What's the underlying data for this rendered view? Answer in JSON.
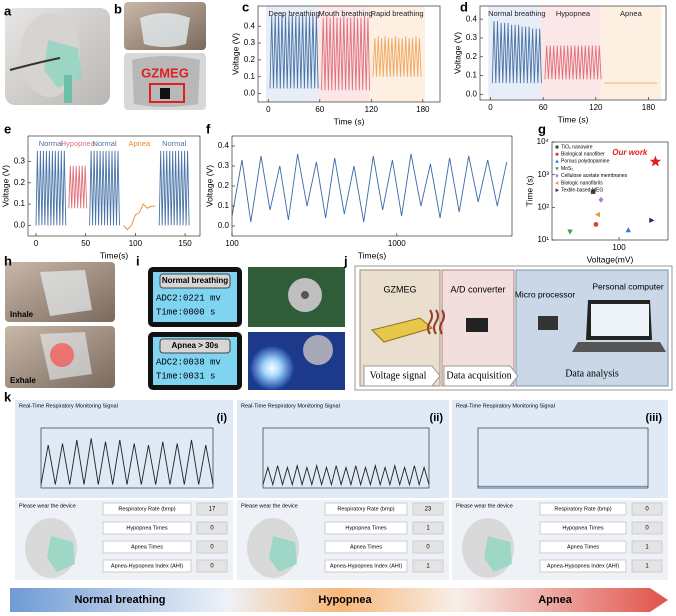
{
  "panel_labels": [
    "a",
    "b",
    "c",
    "d",
    "e",
    "f",
    "g",
    "h",
    "i",
    "j",
    "k"
  ],
  "b": {
    "brand": "GZMEG"
  },
  "h": {
    "inhale": "Inhale",
    "exhale": "Exhale"
  },
  "i": {
    "screens": [
      {
        "title": "Normal breathing",
        "lines": [
          "ADC2:0221 mv",
          "Time:0000 s"
        ]
      },
      {
        "title": "Apnea > 30s",
        "lines": [
          "ADC2:0038 mv",
          "Time:0031 s"
        ]
      }
    ]
  },
  "j": {
    "gzmeg": "GZMEG",
    "converter": "A/D converter",
    "processor": "Micro processor",
    "computer": "Personal computer",
    "stages": [
      "Voltage signal",
      "Data acquisition",
      "Data analysis"
    ]
  },
  "k": {
    "panels": [
      {
        "title": "Real-Time Respiratory Monitoring Signal",
        "tag": "(i)",
        "prompt": "Please wear the device",
        "rows": [
          {
            "label": "Respiratory Rate (bmp)",
            "value": 17
          },
          {
            "label": "Hypopnea Times",
            "value": 0
          },
          {
            "label": "Apnea Times",
            "value": 0
          },
          {
            "label": "Apnea-Hypopnea Index (AHI)",
            "value": 0
          }
        ]
      },
      {
        "title": "Real-Time Respiratory Monitoring Signal",
        "tag": "(ii)",
        "prompt": "Please wear the device",
        "rows": [
          {
            "label": "Respiratory Rate (bmp)",
            "value": 23
          },
          {
            "label": "Hypopnea Times",
            "value": 1
          },
          {
            "label": "Apnea Times",
            "value": 0
          },
          {
            "label": "Apnea-Hypopnea Index (AHI)",
            "value": 1
          }
        ]
      },
      {
        "title": "Real-Time Respiratory Monitoring Signal",
        "tag": "(iii)",
        "prompt": "Please wear the device",
        "rows": [
          {
            "label": "Respiratory Rate (bmp)",
            "value": 0
          },
          {
            "label": "Hypopnea Times",
            "value": 0
          },
          {
            "label": "Apnea Times",
            "value": 1
          },
          {
            "label": "Apnea-Hypopnea Index (AHI)",
            "value": 1
          }
        ]
      }
    ],
    "stages": [
      "Normal breathing",
      "Hypopnea",
      "Apnea"
    ]
  },
  "chart_data": [
    {
      "type": "line",
      "x_label": "Time (s)",
      "y_label": "Voltage (V)",
      "xlim": [
        -12,
        200
      ],
      "ylim": [
        -0.05,
        0.52
      ],
      "xticks": [
        0,
        60,
        120,
        180
      ],
      "yticks": [
        {
          "value": 0,
          "label": "0.0"
        },
        0.1,
        0.2,
        0.3,
        0.4
      ],
      "series": [
        {
          "name": "Deep breathing",
          "color": "#4a74a8",
          "background": "#e8eef7",
          "x": [
            2,
            4,
            6,
            8,
            10,
            12,
            14,
            16,
            18,
            20,
            22,
            24,
            26,
            28,
            30,
            32,
            34,
            36,
            38,
            40,
            42,
            44,
            46,
            48,
            50,
            52,
            54,
            56,
            58
          ],
          "values": [
            0.03,
            0.46,
            0.03,
            0.47,
            0.03,
            0.46,
            0.03,
            0.47,
            0.03,
            0.46,
            0.03,
            0.46,
            0.03,
            0.47,
            0.03,
            0.46,
            0.03,
            0.46,
            0.03,
            0.47,
            0.03,
            0.46,
            0.03,
            0.46,
            0.03,
            0.47,
            0.03,
            0.46,
            0.03
          ]
        },
        {
          "name": "Mouth breathing",
          "color": "#e0707a",
          "background": "#fbe6e8",
          "x": [
            62,
            64,
            66,
            68,
            70,
            72,
            74,
            76,
            78,
            80,
            82,
            84,
            86,
            88,
            90,
            92,
            94,
            96,
            98,
            100,
            102,
            104,
            106,
            108,
            110,
            112,
            114,
            116,
            118
          ],
          "values": [
            0.02,
            0.45,
            0.02,
            0.46,
            0.02,
            0.45,
            0.02,
            0.46,
            0.02,
            0.45,
            0.02,
            0.45,
            0.02,
            0.46,
            0.02,
            0.45,
            0.02,
            0.45,
            0.02,
            0.46,
            0.02,
            0.45,
            0.02,
            0.45,
            0.02,
            0.46,
            0.02,
            0.45,
            0.02
          ]
        },
        {
          "name": "Rapid breathing",
          "color": "#f0a860",
          "background": "#fdf0e2",
          "x": [
            122,
            124,
            126,
            128,
            130,
            132,
            134,
            136,
            138,
            140,
            142,
            144,
            146,
            148,
            150,
            152,
            154,
            156,
            158,
            160,
            162,
            164,
            166,
            168,
            170,
            172,
            174,
            176,
            178
          ],
          "values": [
            0.1,
            0.33,
            0.1,
            0.34,
            0.1,
            0.33,
            0.1,
            0.34,
            0.1,
            0.33,
            0.1,
            0.33,
            0.1,
            0.34,
            0.1,
            0.33,
            0.1,
            0.33,
            0.1,
            0.34,
            0.1,
            0.33,
            0.1,
            0.33,
            0.1,
            0.34,
            0.1,
            0.33,
            0.1
          ]
        }
      ]
    },
    {
      "type": "line",
      "x_label": "Time (s)",
      "y_label": "Voltage (V)",
      "xlim": [
        -12,
        200
      ],
      "ylim": [
        -0.03,
        0.47
      ],
      "xticks": [
        0,
        60,
        120,
        180
      ],
      "yticks": [
        {
          "value": 0,
          "label": "0.0"
        },
        0.1,
        0.2,
        0.3,
        0.4
      ],
      "series": [
        {
          "name": "Normal breathing",
          "color": "#4a74a8",
          "background": "#e8eef7",
          "x": [
            2,
            4,
            6,
            8,
            10,
            12,
            14,
            16,
            18,
            20,
            22,
            24,
            26,
            28,
            30,
            32,
            34,
            36,
            38,
            40,
            42,
            44,
            46,
            48,
            50,
            52,
            54,
            56,
            58
          ],
          "values": [
            0.06,
            0.39,
            0.06,
            0.39,
            0.06,
            0.38,
            0.06,
            0.38,
            0.06,
            0.38,
            0.06,
            0.37,
            0.06,
            0.37,
            0.06,
            0.37,
            0.06,
            0.36,
            0.06,
            0.36,
            0.06,
            0.36,
            0.06,
            0.35,
            0.06,
            0.35,
            0.06,
            0.35,
            0.06
          ]
        },
        {
          "name": "Hypopnea",
          "color": "#e0707a",
          "background": "#fbe6e8",
          "x": [
            62,
            64,
            66,
            68,
            70,
            72,
            74,
            76,
            78,
            80,
            82,
            84,
            86,
            88,
            90,
            92,
            94,
            96,
            98,
            100,
            102,
            104,
            106,
            108,
            110,
            112,
            114,
            116,
            118,
            120,
            122,
            124,
            126
          ],
          "values": [
            0.08,
            0.26,
            0.08,
            0.26,
            0.08,
            0.26,
            0.08,
            0.26,
            0.08,
            0.26,
            0.08,
            0.26,
            0.08,
            0.26,
            0.08,
            0.26,
            0.08,
            0.26,
            0.08,
            0.26,
            0.08,
            0.26,
            0.08,
            0.26,
            0.08,
            0.26,
            0.08,
            0.26,
            0.08,
            0.26,
            0.08,
            0.26,
            0.08
          ]
        },
        {
          "name": "Apnea",
          "color": "#f0a860",
          "background": "#fdf0e2",
          "x": [
            130,
            190
          ],
          "values": [
            0.06,
            0.06
          ]
        }
      ]
    },
    {
      "type": "line",
      "x_label": "Time(s)",
      "y_label": "Voltage (V)",
      "names_colored": true,
      "xlim": [
        -8,
        165
      ],
      "ylim": [
        -0.05,
        0.42
      ],
      "xticks": [
        0,
        50,
        100,
        150
      ],
      "yticks": [
        {
          "value": 0,
          "label": "0.0"
        },
        0.1,
        0.2,
        0.3
      ],
      "series": [
        {
          "name": "Normal",
          "color": "#4a74a8",
          "x": [
            0,
            1.5,
            3,
            4.5,
            6,
            7.5,
            9,
            10.5,
            12,
            13.5,
            15,
            16.5,
            18,
            19.5,
            21,
            22.5,
            24,
            25.5,
            27,
            28.5,
            30
          ],
          "values": [
            0.0,
            0.35,
            0.0,
            0.35,
            0.0,
            0.35,
            0.0,
            0.35,
            0.0,
            0.35,
            0.0,
            0.35,
            0.0,
            0.35,
            0.0,
            0.35,
            0.0,
            0.35,
            0.0,
            0.35,
            0.0
          ]
        },
        {
          "name": "Hypopnea",
          "color": "#e0707a",
          "x": [
            33,
            34.5,
            36,
            37.5,
            39,
            40.5,
            42,
            43.5,
            45,
            46.5,
            48,
            49.5,
            51
          ],
          "values": [
            0.08,
            0.28,
            0.08,
            0.28,
            0.08,
            0.28,
            0.08,
            0.28,
            0.08,
            0.28,
            0.08,
            0.28,
            0.08
          ]
        },
        {
          "name": "Normal",
          "color": "#4a74a8",
          "x": [
            54,
            55.5,
            57,
            58.5,
            60,
            61.5,
            63,
            64.5,
            66,
            67.5,
            69,
            70.5,
            72,
            73.5,
            75,
            76.5,
            78,
            79.5,
            81,
            82.5,
            84
          ],
          "values": [
            0.0,
            0.35,
            0.0,
            0.35,
            0.0,
            0.35,
            0.0,
            0.35,
            0.0,
            0.35,
            0.0,
            0.35,
            0.0,
            0.35,
            0.0,
            0.35,
            0.0,
            0.35,
            0.0,
            0.35,
            0.0
          ]
        },
        {
          "name": "Apnea",
          "color": "#e8862e",
          "x": [
            88,
            92,
            96,
            100,
            104,
            108,
            112,
            116,
            120
          ],
          "values": [
            0.0,
            -0.02,
            0.0,
            0.05,
            0.06,
            0.1,
            0.08,
            0.09,
            0.09
          ]
        },
        {
          "name": "Normal",
          "color": "#4a74a8",
          "x": [
            124,
            125.5,
            127,
            128.5,
            130,
            131.5,
            133,
            134.5,
            136,
            137.5,
            139,
            140.5,
            142,
            143.5,
            145,
            146.5,
            148,
            149.5,
            151,
            152.5,
            154
          ],
          "values": [
            0.0,
            0.35,
            0.0,
            0.35,
            0.0,
            0.35,
            0.0,
            0.35,
            0.0,
            0.35,
            0.0,
            0.35,
            0.0,
            0.35,
            0.0,
            0.35,
            0.0,
            0.35,
            0.0,
            0.35,
            0.0
          ]
        }
      ]
    },
    {
      "type": "line",
      "x_label": "Time(s)",
      "y_label": "Voltage (V)",
      "xscale": "log",
      "xlim": [
        100,
        5000
      ],
      "ylim": [
        -0.05,
        0.45
      ],
      "xticks": [
        100,
        1000
      ],
      "yticks": [
        {
          "value": 0,
          "label": "0.0"
        },
        0.1,
        0.2,
        0.3,
        0.4
      ],
      "series": [
        {
          "color": "#3d6aa6",
          "x": [
            100,
            115,
            130,
            150,
            170,
            195,
            220,
            250,
            285,
            325,
            370,
            420,
            480,
            550,
            630,
            720,
            820,
            940,
            1070,
            1220,
            1400,
            1600,
            1830,
            2090,
            2390,
            2730,
            3120,
            3560,
            4070,
            4650
          ],
          "values": [
            0.05,
            0.33,
            0.02,
            0.35,
            0.08,
            0.3,
            0.03,
            0.36,
            0.1,
            0.32,
            0.04,
            0.34,
            0.06,
            0.3,
            0.02,
            0.35,
            0.08,
            0.33,
            0.05,
            0.36,
            0.1,
            0.31,
            0.04,
            0.34,
            0.07,
            0.35,
            0.12,
            0.33,
            0.1,
            0.32
          ]
        }
      ]
    },
    {
      "type": "scatter",
      "x_label": "Voltage(mV)",
      "y_label": "Time (s)",
      "xscale": "log",
      "yscale": "log",
      "xlim": [
        15,
        400
      ],
      "ylim": [
        10,
        10000
      ],
      "xticks": [
        100
      ],
      "yticks": [
        {
          "value": 10,
          "label": "10¹"
        },
        {
          "value": 100,
          "label": "10²"
        },
        {
          "value": 1000,
          "label": "10³"
        },
        {
          "value": 10000,
          "label": "10⁴"
        }
      ],
      "series": [
        {
          "name": "TiO₂ nanowire",
          "color": "#444444",
          "marker": "square",
          "x": [
            48
          ],
          "values": [
            300
          ]
        },
        {
          "name": "Biological nanofiber",
          "color": "#e0403a",
          "marker": "circle",
          "x": [
            52
          ],
          "values": [
            30
          ]
        },
        {
          "name": "Porous polydopamine",
          "color": "#2f7fd8",
          "marker": "triangle",
          "x": [
            130
          ],
          "values": [
            20
          ]
        },
        {
          "name": "MoS₂",
          "color": "#3aa64a",
          "marker": "tri-down",
          "x": [
            25
          ],
          "values": [
            18
          ]
        },
        {
          "name": "Cellulose acetate membranes",
          "color": "#b07ad8",
          "marker": "diamond",
          "x": [
            60
          ],
          "values": [
            170
          ]
        },
        {
          "name": "Biologic nanofibrils",
          "color": "#e89a2a",
          "marker": "tri-left",
          "x": [
            55
          ],
          "values": [
            60
          ]
        },
        {
          "name": "Textile-based MEG",
          "color": "#1f2a6a",
          "marker": "tri-right",
          "x": [
            250
          ],
          "values": [
            40
          ]
        }
      ],
      "highlight": {
        "name": "Our work",
        "color": "#e02020",
        "marker": "star",
        "x": [
          280
        ],
        "values": [
          2500
        ]
      }
    },
    {
      "type": "line",
      "ylim": [
        0,
        3500
      ],
      "series": [
        {
          "color": "#222222",
          "values": [
            200,
            2500,
            200,
            2600,
            200,
            2800,
            200,
            2900,
            200,
            2700,
            200,
            2800,
            200,
            2600,
            200,
            2500,
            200,
            2700,
            200,
            2600,
            200,
            2800,
            200,
            2500,
            200
          ]
        }
      ]
    },
    {
      "type": "line",
      "ylim": [
        0,
        3500
      ],
      "series": [
        {
          "color": "#222222",
          "values": [
            200,
            1200,
            200,
            1300,
            200,
            1200,
            200,
            1300,
            200,
            1200,
            200,
            1300,
            200,
            1200,
            200,
            1300,
            200,
            1200,
            200,
            1300,
            200,
            1200,
            200,
            1300,
            200,
            1200,
            200,
            1300,
            200,
            1200,
            200,
            1300,
            200,
            1200,
            200
          ]
        }
      ]
    },
    {
      "type": "line",
      "ylim": [
        0,
        3500
      ],
      "series": [
        {
          "color": "#4a74a8",
          "values": [
            100,
            100
          ]
        }
      ]
    }
  ]
}
